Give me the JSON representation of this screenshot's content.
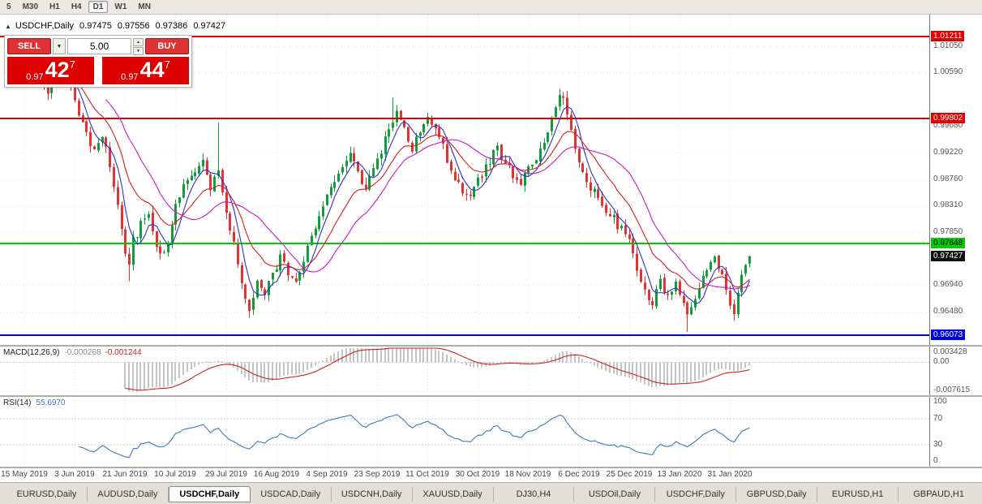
{
  "icons": {
    "collapse": "▲",
    "dropdown": "▼",
    "spin_up": "▲",
    "spin_down": "▼"
  },
  "colors": {
    "up": "#0f9d3a",
    "down": "#e23232",
    "ma_fast": "#2e2ec8",
    "ma_mid": "#d02020",
    "ma_slow": "#c818c8",
    "grid": "#e0e0e0",
    "hist": "#c4c4c4",
    "signal": "#cc2222",
    "rsi": "#3b78c3"
  },
  "toolbar": {
    "timeframes": [
      {
        "label": "5",
        "active": false
      },
      {
        "label": "M30",
        "active": false
      },
      {
        "label": "H1",
        "active": false
      },
      {
        "label": "H4",
        "active": false
      },
      {
        "label": "D1",
        "active": true
      },
      {
        "label": "W1",
        "active": false
      },
      {
        "label": "MN",
        "active": false
      }
    ]
  },
  "chart": {
    "symbol_title": "USDCHF,Daily",
    "ohlc": {
      "open": "0.97475",
      "high": "0.97556",
      "low": "0.97386",
      "close": "0.97427"
    },
    "trade_panel": {
      "sell_label": "SELL",
      "buy_label": "BUY",
      "volume": "5.00",
      "sell_price": {
        "prefix": "0.97",
        "big": "42",
        "sup": "7"
      },
      "buy_price": {
        "prefix": "0.97",
        "big": "44",
        "sup": "7"
      }
    },
    "price_axis": {
      "gray_ticks": [
        {
          "label": "1.01050",
          "price": 1.0105
        },
        {
          "label": "1.00590",
          "price": 1.0059
        },
        {
          "label": "0.99680",
          "price": 0.9968
        },
        {
          "label": "0.99220",
          "price": 0.9922
        },
        {
          "label": "0.98760",
          "price": 0.9876
        },
        {
          "label": "0.98310",
          "price": 0.9831
        },
        {
          "label": "0.97850",
          "price": 0.9785
        },
        {
          "label": "0.96940",
          "price": 0.9694
        },
        {
          "label": "0.96480",
          "price": 0.9648
        }
      ],
      "badges": [
        {
          "label": "1.01211",
          "price": 1.01211,
          "bg": "#e00000",
          "fg": "#ffffff",
          "name": "resistance-line-label"
        },
        {
          "label": "0.99802",
          "price": 0.99802,
          "bg": "#e00000",
          "fg": "#ffffff",
          "name": "resistance-line-label"
        },
        {
          "label": "0.97648",
          "price": 0.97648,
          "bg": "#00cc00",
          "fg": "#000000",
          "name": "support-line-label"
        },
        {
          "label": "0.97427",
          "price": 0.97427,
          "bg": "#111111",
          "fg": "#ffffff",
          "name": "current-price-label"
        },
        {
          "label": "0.96073",
          "price": 0.96073,
          "bg": "#0000dd",
          "fg": "#ffffff",
          "name": "support-line-label"
        }
      ]
    },
    "hlines": [
      {
        "price": 1.01211,
        "color": "#e00000"
      },
      {
        "price": 0.99802,
        "color": "#e00000"
      },
      {
        "price": 0.97648,
        "color": "#00cc00"
      },
      {
        "price": 0.96073,
        "color": "#0000dd"
      }
    ]
  },
  "chart_data": {
    "type": "candlestick",
    "symbol": "USDCHF",
    "timeframe": "Daily",
    "visible_price_range": [
      0.959,
      1.0159
    ],
    "n": 188,
    "last_close": 0.97427,
    "ticks_every": 13,
    "x_tick_labels": [
      "15 May 2019",
      "3 Jun 2019",
      "21 Jun 2019",
      "10 Jul 2019",
      "29 Jul 2019",
      "16 Aug 2019",
      "4 Sep 2019",
      "23 Sep 2019",
      "11 Oct 2019",
      "30 Oct 2019",
      "18 Nov 2019",
      "6 Dec 2019",
      "25 Dec 2019",
      "13 Jan 2020",
      "31 Jan 2020"
    ],
    "close_anchors": [
      [
        0,
        1.0058
      ],
      [
        2,
        1.0072
      ],
      [
        4,
        1.0046
      ],
      [
        6,
        1.0031
      ],
      [
        8,
        1.0058
      ],
      [
        10,
        1.0064
      ],
      [
        12,
        1.003
      ],
      [
        14,
        0.9992
      ],
      [
        16,
        0.9952
      ],
      [
        18,
        0.993
      ],
      [
        20,
        0.995
      ],
      [
        22,
        0.9905
      ],
      [
        24,
        0.9828
      ],
      [
        26,
        0.974
      ],
      [
        27,
        0.9722
      ],
      [
        28,
        0.9768
      ],
      [
        30,
        0.98
      ],
      [
        32,
        0.982
      ],
      [
        34,
        0.9762
      ],
      [
        36,
        0.9742
      ],
      [
        38,
        0.98
      ],
      [
        40,
        0.9852
      ],
      [
        42,
        0.9872
      ],
      [
        44,
        0.9896
      ],
      [
        46,
        0.9907
      ],
      [
        48,
        0.986
      ],
      [
        50,
        0.9898
      ],
      [
        51,
        0.9852
      ],
      [
        52,
        0.9818
      ],
      [
        54,
        0.9762
      ],
      [
        56,
        0.97
      ],
      [
        58,
        0.9655
      ],
      [
        60,
        0.9702
      ],
      [
        62,
        0.9678
      ],
      [
        64,
        0.9718
      ],
      [
        66,
        0.974
      ],
      [
        68,
        0.9716
      ],
      [
        70,
        0.9698
      ],
      [
        72,
        0.9738
      ],
      [
        74,
        0.9772
      ],
      [
        76,
        0.9806
      ],
      [
        78,
        0.9848
      ],
      [
        80,
        0.9868
      ],
      [
        82,
        0.9898
      ],
      [
        84,
        0.9926
      ],
      [
        86,
        0.9888
      ],
      [
        88,
        0.9862
      ],
      [
        90,
        0.9898
      ],
      [
        92,
        0.9928
      ],
      [
        94,
        0.9962
      ],
      [
        96,
        0.9998
      ],
      [
        98,
        0.9962
      ],
      [
        100,
        0.993
      ],
      [
        102,
        0.9958
      ],
      [
        104,
        0.9982
      ],
      [
        106,
        0.997
      ],
      [
        108,
        0.9928
      ],
      [
        110,
        0.9892
      ],
      [
        112,
        0.9866
      ],
      [
        114,
        0.9842
      ],
      [
        116,
        0.9862
      ],
      [
        118,
        0.9886
      ],
      [
        120,
        0.9908
      ],
      [
        122,
        0.993
      ],
      [
        124,
        0.9906
      ],
      [
        126,
        0.9882
      ],
      [
        128,
        0.9866
      ],
      [
        130,
        0.9892
      ],
      [
        132,
        0.9916
      ],
      [
        134,
        0.9944
      ],
      [
        136,
        0.998
      ],
      [
        138,
        1.0012
      ],
      [
        139,
        1.0018
      ],
      [
        140,
        0.9984
      ],
      [
        142,
        0.993
      ],
      [
        144,
        0.9892
      ],
      [
        146,
        0.9862
      ],
      [
        148,
        0.984
      ],
      [
        150,
        0.9822
      ],
      [
        152,
        0.9806
      ],
      [
        154,
        0.979
      ],
      [
        156,
        0.9772
      ],
      [
        157,
        0.9744
      ],
      [
        158,
        0.9712
      ],
      [
        160,
        0.9682
      ],
      [
        162,
        0.9664
      ],
      [
        164,
        0.9696
      ],
      [
        166,
        0.9672
      ],
      [
        168,
        0.9704
      ],
      [
        170,
        0.9666
      ],
      [
        171,
        0.9638
      ],
      [
        172,
        0.9662
      ],
      [
        174,
        0.969
      ],
      [
        176,
        0.9716
      ],
      [
        178,
        0.9734
      ],
      [
        180,
        0.9704
      ],
      [
        182,
        0.9662
      ],
      [
        183,
        0.9648
      ],
      [
        184,
        0.9682
      ],
      [
        185,
        0.9716
      ],
      [
        186,
        0.9736
      ],
      [
        187,
        0.97427
      ]
    ],
    "wick_spikes": [
      {
        "i": 27,
        "low": 0.97
      },
      {
        "i": 50,
        "high": 0.9973
      },
      {
        "i": 95,
        "high": 1.0016
      },
      {
        "i": 104,
        "high": 0.9985
      },
      {
        "i": 138,
        "high": 1.0023
      },
      {
        "i": 171,
        "low": 0.9613
      },
      {
        "i": 183,
        "low": 0.9641
      }
    ],
    "moving_averages": [
      {
        "type": "sma",
        "period": 5,
        "color_key": "ma_fast"
      },
      {
        "type": "ema",
        "period": 14,
        "color_key": "ma_mid"
      },
      {
        "type": "sma",
        "period": 22,
        "color_key": "ma_slow"
      }
    ],
    "indicators": {
      "macd": {
        "label": "MACD(12,26,9)",
        "value": "-0.000268",
        "signal": "-0.001244",
        "fast": 12,
        "slow": 26,
        "smooth": 9,
        "axis_max": "0.003428",
        "axis_zero": "0.00",
        "axis_min": "-0.007615",
        "range": [
          -0.007615,
          0.003428
        ]
      },
      "rsi": {
        "label": "RSI(14)",
        "period": 14,
        "value": "55.6970",
        "axis_labels": [
          "100",
          "70",
          "30",
          "0"
        ],
        "levels": [
          70,
          30
        ]
      }
    }
  },
  "tabs": {
    "items": [
      {
        "label": "EURUSD,Daily",
        "active": false
      },
      {
        "label": "AUDUSD,Daily",
        "active": false
      },
      {
        "label": "USDCHF,Daily",
        "active": true
      },
      {
        "label": "USDCAD,Daily",
        "active": false
      },
      {
        "label": "USDCNH,Daily",
        "active": false
      },
      {
        "label": "XAUUSD,Daily",
        "active": false
      },
      {
        "label": "DJ30,H4",
        "active": false
      },
      {
        "label": "USDOil,Daily",
        "active": false
      },
      {
        "label": "USDCHF,Daily",
        "active": false
      },
      {
        "label": "GBPUSD,Daily",
        "active": false
      },
      {
        "label": "EURUSD,H1",
        "active": false
      },
      {
        "label": "GBPAUD,H1",
        "active": false
      }
    ]
  }
}
